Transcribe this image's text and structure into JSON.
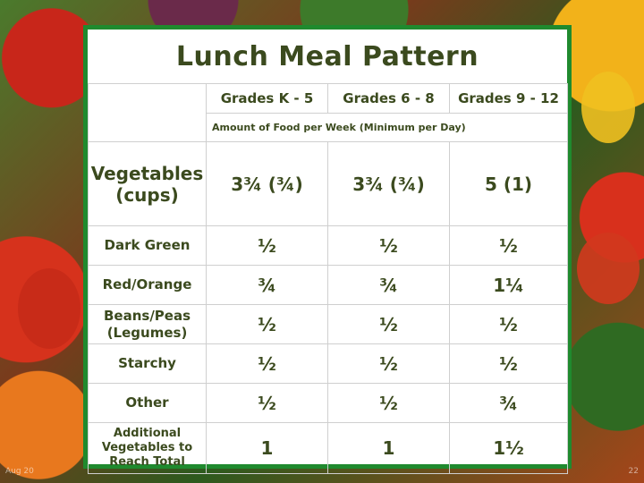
{
  "slide": {
    "title": "Lunch Meal Pattern",
    "footer_left": "Aug 20",
    "footer_right": "22"
  },
  "table": {
    "grade_headers": [
      "Grades K - 5",
      "Grades 6 - 8",
      "Grades 9 - 12"
    ],
    "subheader": "Amount of Food per Week (Minimum per Day)",
    "vegetables": {
      "label_line1": "Vegetables",
      "label_line2": "(cups)",
      "values": [
        "3¾ (¾)",
        "3¾ (¾)",
        "5 (1)"
      ]
    },
    "rows": [
      {
        "label": "Dark Green",
        "values": [
          "½",
          "½",
          "½"
        ]
      },
      {
        "label": "Red/Orange",
        "values": [
          "¾",
          "¾",
          "1¼"
        ]
      },
      {
        "label_line1": "Beans/Peas",
        "label_line2": "(Legumes)",
        "values": [
          "½",
          "½",
          "½"
        ]
      },
      {
        "label": "Starchy",
        "values": [
          "½",
          "½",
          "½"
        ]
      },
      {
        "label": "Other",
        "values": [
          "½",
          "½",
          "¾"
        ]
      },
      {
        "label_line1": "Additional",
        "label_line2": "Vegetables to",
        "label_line3": "Reach Total",
        "values": [
          "1",
          "1",
          "1½"
        ]
      }
    ]
  }
}
